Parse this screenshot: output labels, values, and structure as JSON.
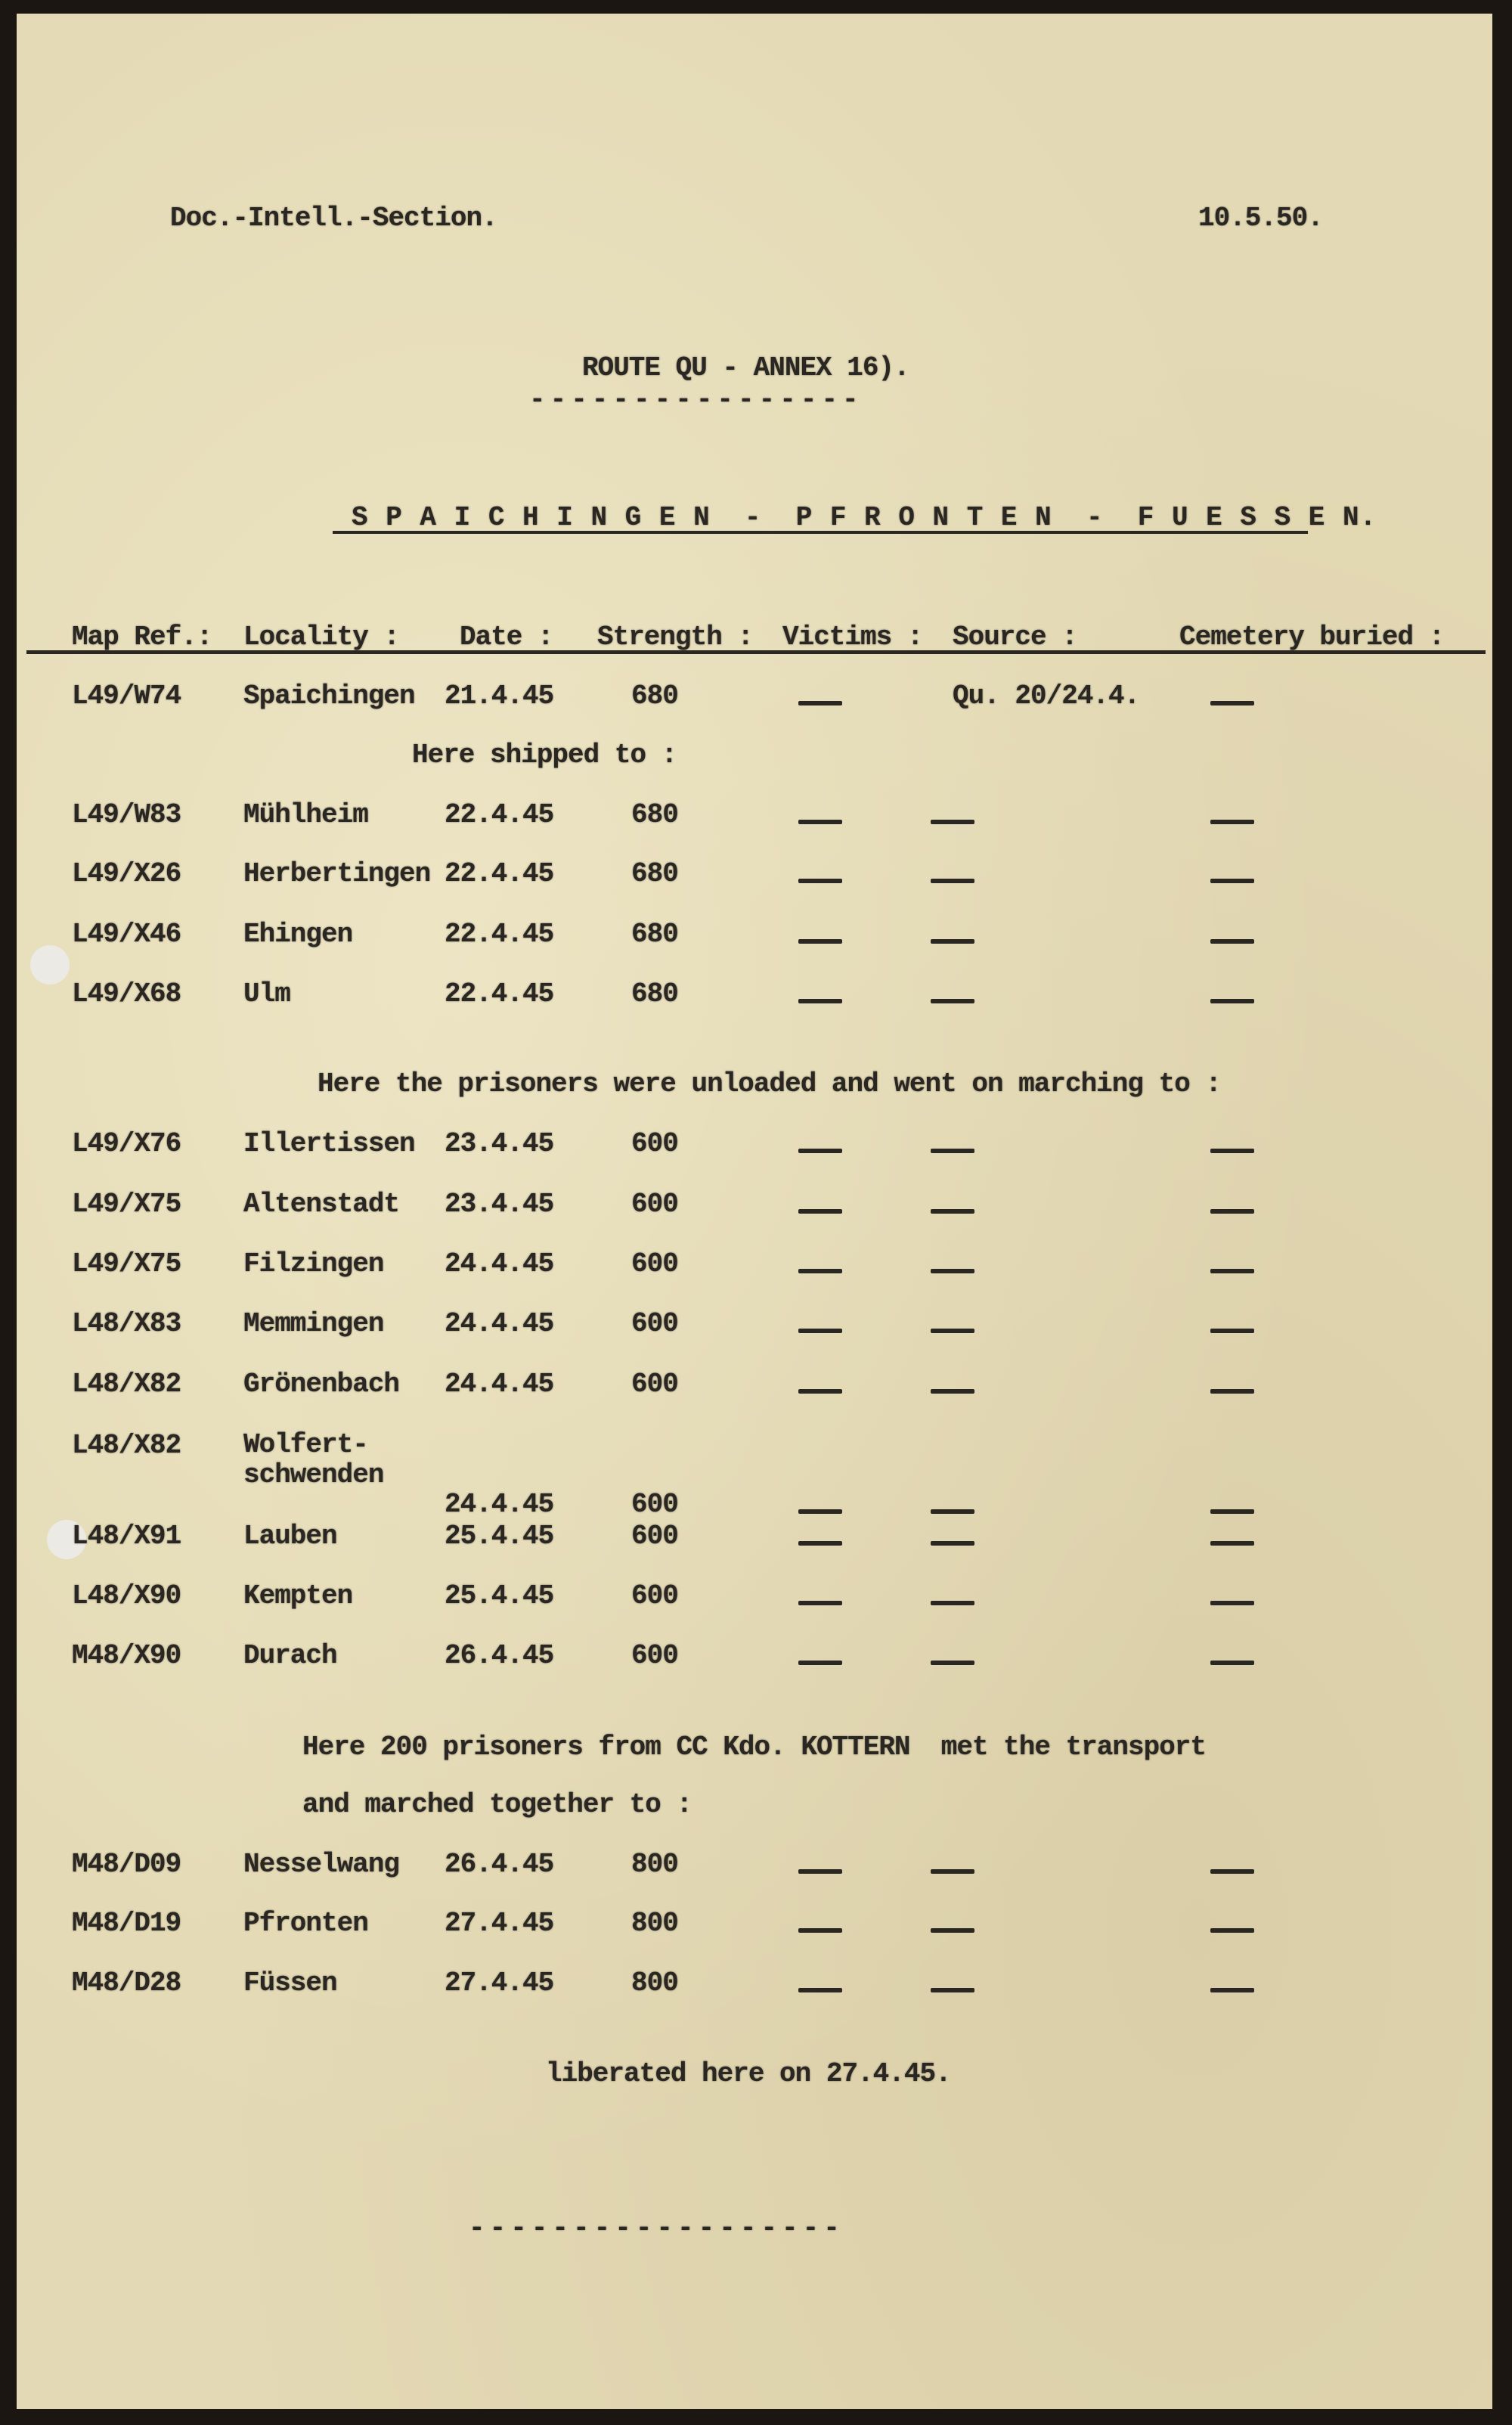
{
  "header": {
    "section": "Doc.-Intell.-Section.",
    "date": "10.5.50."
  },
  "title": "ROUTE QU - ANNEX 16).",
  "title_rule": "----------------",
  "subtitle": "S P A I C H I N G E N  -  P F R O N T E N  -  F U E S S E N.",
  "columns": [
    "Map Ref.:",
    "Locality :",
    "Date :",
    "Strength :",
    "Victims :",
    "Source :",
    "Cemetery buried :"
  ],
  "rows": [
    {
      "map_ref": "L49/W74",
      "locality": "Spaichingen",
      "date": "21.4.45",
      "strength": "680",
      "victims": "—",
      "source": "Qu. 20/24.4.",
      "cemetery": "—"
    },
    {
      "note": "Here shipped to :"
    },
    {
      "map_ref": "L49/W83",
      "locality": "Mühlheim",
      "date": "22.4.45",
      "strength": "680",
      "victims": "—",
      "source": "—",
      "cemetery": "—"
    },
    {
      "map_ref": "L49/X26",
      "locality": "Herbertingen",
      "date": "22.4.45",
      "strength": "680",
      "victims": "—",
      "source": "—",
      "cemetery": "—"
    },
    {
      "map_ref": "L49/X46",
      "locality": "Ehingen",
      "date": "22.4.45",
      "strength": "680",
      "victims": "—",
      "source": "—",
      "cemetery": "—"
    },
    {
      "map_ref": "L49/X68",
      "locality": "Ulm",
      "date": "22.4.45",
      "strength": "680",
      "victims": "—",
      "source": "—",
      "cemetery": "—"
    },
    {
      "note": "Here the prisoners were unloaded and went on marching to :"
    },
    {
      "map_ref": "L49/X76",
      "locality": "Illertissen",
      "date": "23.4.45",
      "strength": "600",
      "victims": "—",
      "source": "—",
      "cemetery": "—"
    },
    {
      "map_ref": "L49/X75",
      "locality": "Altenstadt",
      "date": "23.4.45",
      "strength": "600",
      "victims": "—",
      "source": "—",
      "cemetery": "—"
    },
    {
      "map_ref": "L49/X75",
      "locality": "Filzingen",
      "date": "24.4.45",
      "strength": "600",
      "victims": "—",
      "source": "—",
      "cemetery": "—"
    },
    {
      "map_ref": "L48/X83",
      "locality": "Memmingen",
      "date": "24.4.45",
      "strength": "600",
      "victims": "—",
      "source": "—",
      "cemetery": "—"
    },
    {
      "map_ref": "L48/X82",
      "locality": "Grönenbach",
      "date": "24.4.45",
      "strength": "600",
      "victims": "—",
      "source": "—",
      "cemetery": "—"
    },
    {
      "map_ref": "L48/X82",
      "locality": "Wolfert-\nschwenden",
      "date": "24.4.45",
      "strength": "600",
      "victims": "—",
      "source": "—",
      "cemetery": "—"
    },
    {
      "map_ref": "L48/X91",
      "locality": "Lauben",
      "date": "25.4.45",
      "strength": "600",
      "victims": "—",
      "source": "—",
      "cemetery": "—"
    },
    {
      "map_ref": "L48/X90",
      "locality": "Kempten",
      "date": "25.4.45",
      "strength": "600",
      "victims": "—",
      "source": "—",
      "cemetery": "—"
    },
    {
      "map_ref": "M48/X90",
      "locality": "Durach",
      "date": "26.4.45",
      "strength": "600",
      "victims": "—",
      "source": "—",
      "cemetery": "—"
    },
    {
      "note": "Here 200 prisoners from CC Kdo. KOTTERN  met the transport"
    },
    {
      "note": "and marched together to :"
    },
    {
      "map_ref": "M48/D09",
      "locality": "Nesselwang",
      "date": "26.4.45",
      "strength": "800",
      "victims": "—",
      "source": "—",
      "cemetery": "—"
    },
    {
      "map_ref": "M48/D19",
      "locality": "Pfronten",
      "date": "27.4.45",
      "strength": "800",
      "victims": "—",
      "source": "—",
      "cemetery": "—"
    },
    {
      "map_ref": "M48/D28",
      "locality": "Füssen",
      "date": "27.4.45",
      "strength": "800",
      "victims": "—",
      "source": "—",
      "cemetery": "—"
    }
  ],
  "footer_note": "liberated here on 27.4.45.",
  "closing_rule": "------------------"
}
